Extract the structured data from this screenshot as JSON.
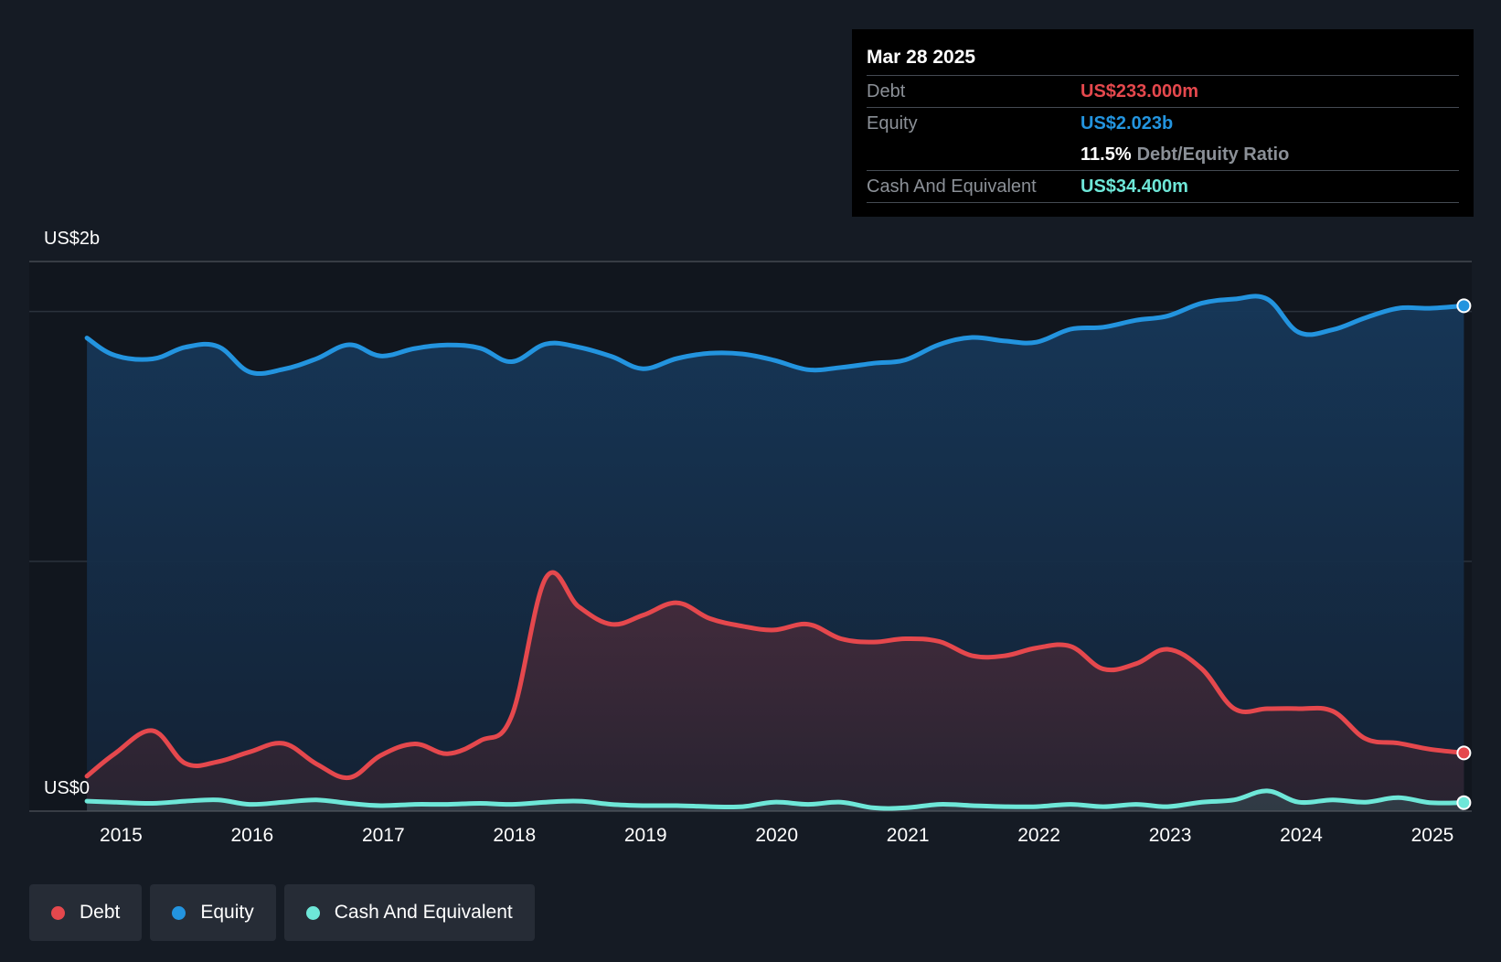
{
  "tooltip": {
    "date": "Mar 28 2025",
    "debt_label": "Debt",
    "debt_value": "US$233.000m",
    "equity_label": "Equity",
    "equity_value": "US$2.023b",
    "ratio_value": "11.5%",
    "ratio_label": "Debt/Equity Ratio",
    "cash_label": "Cash And Equivalent",
    "cash_value": "US$34.400m"
  },
  "legend": {
    "debt": "Debt",
    "equity": "Equity",
    "cash": "Cash And Equivalent"
  },
  "colors": {
    "debt": "#e5484d",
    "equity": "#2394df",
    "cash": "#6ee7d8",
    "background": "#151b24"
  },
  "chart_data": {
    "type": "area",
    "y_top_label": "US$2b",
    "y_bottom_label": "US$0",
    "ylim": [
      0,
      2.2
    ],
    "xlim": [
      2014.3,
      2025.3
    ],
    "x_ticks": [
      "2015",
      "2016",
      "2017",
      "2018",
      "2019",
      "2020",
      "2021",
      "2022",
      "2023",
      "2024",
      "2025"
    ],
    "series": [
      {
        "name": "Equity",
        "points": [
          [
            2014.74,
            1.894
          ],
          [
            2014.95,
            1.825
          ],
          [
            2015.24,
            1.81
          ],
          [
            2015.49,
            1.857
          ],
          [
            2015.74,
            1.86
          ],
          [
            2015.98,
            1.758
          ],
          [
            2016.24,
            1.769
          ],
          [
            2016.49,
            1.811
          ],
          [
            2016.74,
            1.867
          ],
          [
            2016.98,
            1.822
          ],
          [
            2017.24,
            1.852
          ],
          [
            2017.49,
            1.866
          ],
          [
            2017.74,
            1.853
          ],
          [
            2017.98,
            1.799
          ],
          [
            2018.24,
            1.87
          ],
          [
            2018.49,
            1.857
          ],
          [
            2018.74,
            1.82
          ],
          [
            2018.98,
            1.771
          ],
          [
            2019.24,
            1.812
          ],
          [
            2019.49,
            1.833
          ],
          [
            2019.74,
            1.83
          ],
          [
            2019.98,
            1.805
          ],
          [
            2020.24,
            1.767
          ],
          [
            2020.49,
            1.776
          ],
          [
            2020.74,
            1.793
          ],
          [
            2020.98,
            1.806
          ],
          [
            2021.24,
            1.868
          ],
          [
            2021.49,
            1.896
          ],
          [
            2021.74,
            1.882
          ],
          [
            2021.98,
            1.877
          ],
          [
            2022.24,
            1.929
          ],
          [
            2022.49,
            1.937
          ],
          [
            2022.74,
            1.965
          ],
          [
            2022.98,
            1.982
          ],
          [
            2023.24,
            2.033
          ],
          [
            2023.49,
            2.05
          ],
          [
            2023.74,
            2.05
          ],
          [
            2023.98,
            1.917
          ],
          [
            2024.24,
            1.927
          ],
          [
            2024.49,
            1.975
          ],
          [
            2024.74,
            2.013
          ],
          [
            2024.98,
            2.013
          ],
          [
            2025.24,
            2.023
          ]
        ]
      },
      {
        "name": "Debt",
        "points": [
          [
            2014.74,
            0.14
          ],
          [
            2014.95,
            0.229
          ],
          [
            2015.24,
            0.322
          ],
          [
            2015.49,
            0.191
          ],
          [
            2015.74,
            0.198
          ],
          [
            2015.98,
            0.237
          ],
          [
            2016.24,
            0.271
          ],
          [
            2016.49,
            0.189
          ],
          [
            2016.74,
            0.134
          ],
          [
            2016.98,
            0.223
          ],
          [
            2017.24,
            0.269
          ],
          [
            2017.49,
            0.23
          ],
          [
            2017.74,
            0.282
          ],
          [
            2017.98,
            0.382
          ],
          [
            2018.24,
            0.934
          ],
          [
            2018.49,
            0.818
          ],
          [
            2018.74,
            0.748
          ],
          [
            2018.98,
            0.784
          ],
          [
            2019.24,
            0.834
          ],
          [
            2019.49,
            0.771
          ],
          [
            2019.74,
            0.74
          ],
          [
            2019.98,
            0.725
          ],
          [
            2020.24,
            0.748
          ],
          [
            2020.49,
            0.69
          ],
          [
            2020.74,
            0.677
          ],
          [
            2020.98,
            0.69
          ],
          [
            2021.24,
            0.679
          ],
          [
            2021.49,
            0.622
          ],
          [
            2021.74,
            0.622
          ],
          [
            2021.98,
            0.653
          ],
          [
            2022.24,
            0.66
          ],
          [
            2022.49,
            0.569
          ],
          [
            2022.74,
            0.59
          ],
          [
            2022.98,
            0.648
          ],
          [
            2023.24,
            0.57
          ],
          [
            2023.49,
            0.41
          ],
          [
            2023.74,
            0.41
          ],
          [
            2023.98,
            0.41
          ],
          [
            2024.24,
            0.4
          ],
          [
            2024.49,
            0.29
          ],
          [
            2024.74,
            0.272
          ],
          [
            2024.98,
            0.248
          ],
          [
            2025.24,
            0.233
          ]
        ]
      },
      {
        "name": "Cash And Equivalent",
        "points": [
          [
            2014.74,
            0.04
          ],
          [
            2014.95,
            0.036
          ],
          [
            2015.24,
            0.031
          ],
          [
            2015.49,
            0.04
          ],
          [
            2015.74,
            0.045
          ],
          [
            2015.98,
            0.027
          ],
          [
            2016.24,
            0.036
          ],
          [
            2016.49,
            0.045
          ],
          [
            2016.74,
            0.031
          ],
          [
            2016.98,
            0.022
          ],
          [
            2017.24,
            0.027
          ],
          [
            2017.49,
            0.027
          ],
          [
            2017.74,
            0.031
          ],
          [
            2017.98,
            0.027
          ],
          [
            2018.24,
            0.036
          ],
          [
            2018.49,
            0.04
          ],
          [
            2018.74,
            0.027
          ],
          [
            2018.98,
            0.022
          ],
          [
            2019.24,
            0.022
          ],
          [
            2019.49,
            0.018
          ],
          [
            2019.74,
            0.018
          ],
          [
            2019.98,
            0.036
          ],
          [
            2020.24,
            0.027
          ],
          [
            2020.49,
            0.036
          ],
          [
            2020.74,
            0.013
          ],
          [
            2020.98,
            0.013
          ],
          [
            2021.24,
            0.027
          ],
          [
            2021.49,
            0.022
          ],
          [
            2021.74,
            0.018
          ],
          [
            2021.98,
            0.018
          ],
          [
            2022.24,
            0.027
          ],
          [
            2022.49,
            0.018
          ],
          [
            2022.74,
            0.027
          ],
          [
            2022.98,
            0.018
          ],
          [
            2023.24,
            0.036
          ],
          [
            2023.49,
            0.045
          ],
          [
            2023.74,
            0.081
          ],
          [
            2023.98,
            0.036
          ],
          [
            2024.24,
            0.045
          ],
          [
            2024.49,
            0.036
          ],
          [
            2024.74,
            0.054
          ],
          [
            2024.98,
            0.034
          ],
          [
            2025.24,
            0.034
          ]
        ]
      }
    ]
  }
}
